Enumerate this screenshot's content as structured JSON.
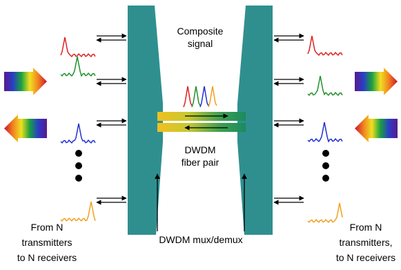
{
  "labels": {
    "composite_signal": [
      "Composite",
      "signal"
    ],
    "fiber_pair": [
      "DWDM",
      "fiber pair"
    ],
    "mux_demux": "DWDM mux/demux",
    "left_caption": [
      "From N",
      "transmitters",
      "to N receivers"
    ],
    "right_caption": [
      "From N",
      "transmitters,",
      "to N receivers"
    ]
  }
}
